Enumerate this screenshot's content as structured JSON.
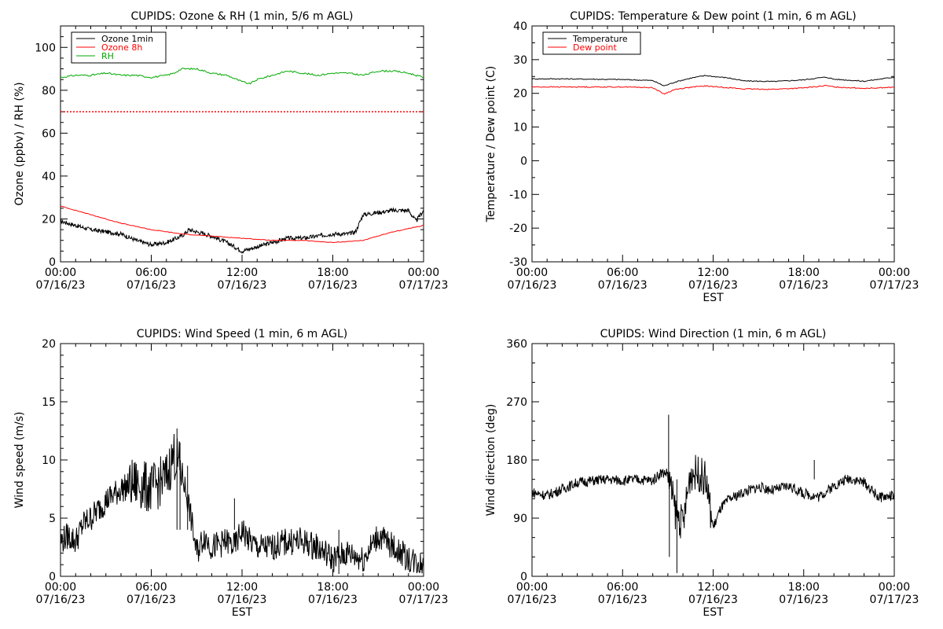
{
  "page": {
    "background": "#ffffff"
  },
  "chart_data": [
    {
      "type": "line",
      "title": "CUPIDS: Ozone & RH (1 min, 5/6 m AGL)",
      "xlabel": "",
      "ylabel": "Ozone (ppbv) / RH (%)",
      "xlim": [
        "07/16/23 00:00",
        "07/17/23 00:00"
      ],
      "ylim": [
        0,
        110
      ],
      "yticks": [
        0,
        20,
        40,
        60,
        80,
        100
      ],
      "xtick_times": [
        "00:00",
        "06:00",
        "12:00",
        "18:00",
        "00:00"
      ],
      "xtick_dates": [
        "07/16/23",
        "07/16/23",
        "07/16/23",
        "07/16/23",
        "07/17/23"
      ],
      "legend": {
        "placement": "top-left",
        "entries": [
          "Ozone 1min",
          "Ozone 8h",
          "RH"
        ]
      },
      "reference_line": {
        "y": 70,
        "color": "#ff0000",
        "style": "dotted"
      },
      "series": [
        {
          "name": "Ozone 1min",
          "color": "#000000",
          "times": [
            "00:00",
            "01:00",
            "02:00",
            "03:00",
            "04:00",
            "05:00",
            "06:00",
            "07:00",
            "08:00",
            "08:30",
            "09:00",
            "10:00",
            "11:00",
            "12:00",
            "13:00",
            "14:00",
            "15:00",
            "16:00",
            "17:00",
            "18:00",
            "19:00",
            "19:30",
            "20:00",
            "21:00",
            "22:00",
            "23:00",
            "23:30",
            "24:00"
          ],
          "values": [
            19,
            17,
            15,
            14,
            13,
            10,
            8,
            9,
            12,
            15,
            14,
            12,
            9,
            5,
            7,
            9,
            11,
            11,
            12,
            13,
            13,
            14,
            22,
            23,
            24,
            24,
            19,
            24
          ]
        },
        {
          "name": "Ozone 8h",
          "color": "#ff0000",
          "times": [
            "00:00",
            "02:00",
            "04:00",
            "06:00",
            "08:00",
            "10:00",
            "12:00",
            "14:00",
            "16:00",
            "18:00",
            "20:00",
            "22:00",
            "24:00"
          ],
          "values": [
            26,
            22,
            18,
            15,
            13,
            12,
            11,
            10,
            10,
            9,
            10,
            14,
            17
          ]
        },
        {
          "name": "RH",
          "color": "#00aa00",
          "times": [
            "00:00",
            "01:00",
            "02:00",
            "03:00",
            "04:00",
            "05:00",
            "06:00",
            "07:00",
            "07:30",
            "08:00",
            "09:00",
            "10:00",
            "11:00",
            "12:00",
            "12:30",
            "13:00",
            "14:00",
            "15:00",
            "16:00",
            "17:00",
            "18:00",
            "19:00",
            "20:00",
            "21:00",
            "22:00",
            "23:00",
            "24:00"
          ],
          "values": [
            86,
            87,
            87,
            88,
            87,
            87,
            86,
            87,
            88,
            90,
            90,
            88,
            87,
            84,
            83,
            85,
            87,
            89,
            88,
            87,
            88,
            88,
            87,
            89,
            89,
            88,
            86
          ]
        }
      ]
    },
    {
      "type": "line",
      "title": "CUPIDS: Temperature & Dew point (1 min, 6 m AGL)",
      "xlabel": "EST",
      "ylabel": "Temperature / Dew point (C)",
      "xlim": [
        "07/16/23 00:00",
        "07/17/23 00:00"
      ],
      "ylim": [
        -30,
        40
      ],
      "yticks": [
        -30,
        -20,
        -10,
        0,
        10,
        20,
        30,
        40
      ],
      "xtick_times": [
        "00:00",
        "06:00",
        "12:00",
        "18:00",
        "00:00"
      ],
      "xtick_dates": [
        "07/16/23",
        "07/16/23",
        "07/16/23",
        "07/16/23",
        "07/17/23"
      ],
      "legend": {
        "placement": "top-left",
        "entries": [
          "Temperature",
          "Dew point"
        ]
      },
      "series": [
        {
          "name": "Temperature",
          "color": "#000000",
          "times": [
            "00:00",
            "02:00",
            "04:00",
            "06:00",
            "08:00",
            "08:45",
            "09:30",
            "10:30",
            "11:30",
            "12:00",
            "13:00",
            "14:00",
            "16:00",
            "18:00",
            "19:00",
            "19:30",
            "20:00",
            "22:00",
            "24:00"
          ],
          "values": [
            24.3,
            24.3,
            24.2,
            24.1,
            23.8,
            22.2,
            23.4,
            24.5,
            25.3,
            25.0,
            24.6,
            23.7,
            23.5,
            24.0,
            24.6,
            24.8,
            24.2,
            23.6,
            24.8
          ]
        },
        {
          "name": "Dew point",
          "color": "#ff0000",
          "times": [
            "00:00",
            "02:00",
            "04:00",
            "06:00",
            "08:00",
            "08:45",
            "09:30",
            "10:30",
            "11:30",
            "12:00",
            "13:00",
            "14:00",
            "16:00",
            "18:00",
            "19:30",
            "20:00",
            "22:00",
            "24:00"
          ],
          "values": [
            21.9,
            21.9,
            21.9,
            21.9,
            21.7,
            19.8,
            21.2,
            21.8,
            22.2,
            22.0,
            21.7,
            21.3,
            21.2,
            21.6,
            22.3,
            21.9,
            21.5,
            21.8
          ]
        }
      ]
    },
    {
      "type": "line",
      "title": "CUPIDS: Wind Speed (1 min, 6 m AGL)",
      "xlabel": "EST",
      "ylabel": "Wind speed (m/s)",
      "xlim": [
        "07/16/23 00:00",
        "07/17/23 00:00"
      ],
      "ylim": [
        0,
        20
      ],
      "yticks": [
        0,
        5,
        10,
        15,
        20
      ],
      "xtick_times": [
        "00:00",
        "06:00",
        "12:00",
        "18:00",
        "00:00"
      ],
      "xtick_dates": [
        "07/16/23",
        "07/16/23",
        "07/16/23",
        "07/16/23",
        "07/17/23"
      ],
      "series": [
        {
          "name": "",
          "color": "#000000",
          "times": [
            "00:00",
            "00:30",
            "01:00",
            "01:30",
            "02:00",
            "03:00",
            "03:30",
            "04:00",
            "05:00",
            "06:00",
            "06:30",
            "07:00",
            "07:30",
            "08:00",
            "08:30",
            "09:00",
            "09:30",
            "10:00",
            "11:00",
            "11:30",
            "12:00",
            "12:30",
            "13:00",
            "14:00",
            "15:00",
            "16:00",
            "17:00",
            "18:00",
            "19:00",
            "20:00",
            "21:00",
            "22:00",
            "23:00",
            "24:00"
          ],
          "values": [
            3.0,
            3.5,
            3.0,
            4.5,
            5.0,
            6.5,
            7.0,
            7.5,
            8.0,
            7.5,
            8.0,
            8.5,
            10.5,
            9.0,
            6.0,
            2.0,
            3.5,
            2.5,
            3.0,
            2.5,
            4.0,
            3.0,
            2.5,
            2.5,
            3.0,
            3.0,
            2.5,
            1.5,
            2.0,
            1.5,
            3.5,
            2.5,
            1.5,
            1.0
          ]
        }
      ]
    },
    {
      "type": "line",
      "title": "CUPIDS: Wind Direction (1 min, 6 m AGL)",
      "xlabel": "EST",
      "ylabel": "Wind direction (deg)",
      "xlim": [
        "07/16/23 00:00",
        "07/17/23 00:00"
      ],
      "ylim": [
        0,
        360
      ],
      "yticks": [
        0,
        90,
        180,
        270,
        360
      ],
      "xtick_times": [
        "00:00",
        "06:00",
        "12:00",
        "18:00",
        "00:00"
      ],
      "xtick_dates": [
        "07/16/23",
        "07/16/23",
        "07/16/23",
        "07/16/23",
        "07/17/23"
      ],
      "series": [
        {
          "name": "",
          "color": "#000000",
          "times": [
            "00:00",
            "01:00",
            "02:00",
            "03:00",
            "04:00",
            "05:00",
            "06:00",
            "07:00",
            "08:00",
            "08:30",
            "09:00",
            "09:30",
            "10:00",
            "10:30",
            "11:00",
            "11:30",
            "12:00",
            "12:30",
            "13:00",
            "14:00",
            "15:00",
            "16:00",
            "17:00",
            "18:00",
            "19:00",
            "20:00",
            "21:00",
            "22:00",
            "23:00",
            "24:00"
          ],
          "values": [
            130,
            125,
            135,
            145,
            148,
            150,
            148,
            150,
            148,
            160,
            160,
            100,
            80,
            160,
            160,
            150,
            75,
            105,
            118,
            130,
            138,
            133,
            140,
            128,
            123,
            140,
            152,
            145,
            122,
            125
          ]
        }
      ]
    }
  ]
}
